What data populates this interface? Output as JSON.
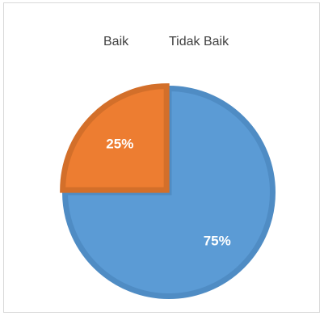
{
  "chart_data": {
    "type": "pie",
    "title": "",
    "categories": [
      "Baik",
      "Tidak Baik"
    ],
    "values": [
      75,
      25
    ],
    "data_labels": [
      "75%",
      "25%"
    ],
    "colors": [
      "#5b9bd5",
      "#ed7d31"
    ],
    "border_colors": [
      "#4f8cc4",
      "#d36f2a"
    ],
    "legend_position": "top",
    "exploded_slice": "Tidak Baik"
  }
}
